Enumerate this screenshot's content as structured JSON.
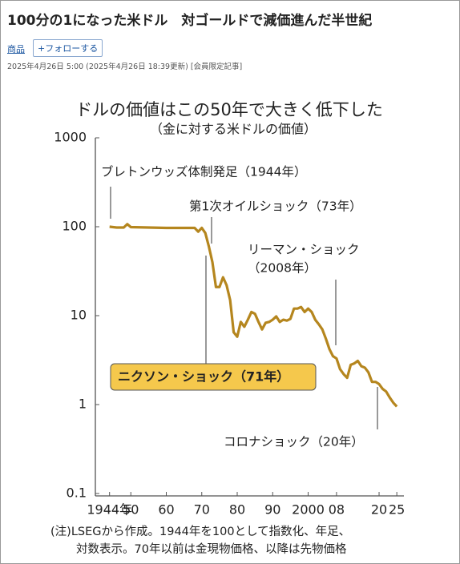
{
  "article": {
    "title": "100分の1になった米ドル　対ゴールドで減価進んだ半世紀",
    "tag": "商品",
    "follow": "+フォローする",
    "date": "2025年4月26日 5:00 (2025年4月26日 18:39更新) [会員限定記事]"
  },
  "chart_data": {
    "type": "line",
    "title": "ドルの価値はこの50年で大きく低下した",
    "subtitle": "（金に対する米ドルの価値）",
    "x": [
      1944,
      1946,
      1948,
      1949,
      1950,
      1955,
      1960,
      1965,
      1968,
      1969,
      1970,
      1971,
      1972,
      1973,
      1974,
      1975,
      1976,
      1977,
      1978,
      1979,
      1980,
      1981,
      1982,
      1983,
      1984,
      1985,
      1986,
      1987,
      1988,
      1989,
      1990,
      1991,
      1992,
      1993,
      1994,
      1995,
      1996,
      1997,
      1998,
      1999,
      2000,
      2001,
      2002,
      2003,
      2004,
      2005,
      2006,
      2007,
      2008,
      2009,
      2010,
      2011,
      2012,
      2013,
      2014,
      2015,
      2016,
      2017,
      2018,
      2019,
      2020,
      2021,
      2022,
      2023,
      2024,
      2025
    ],
    "values": [
      100,
      98,
      98,
      107,
      99,
      98,
      97,
      97,
      97,
      88,
      97,
      85,
      60,
      40,
      21,
      21,
      27,
      22,
      15,
      6.5,
      5.8,
      8.5,
      7.5,
      9,
      11,
      10.5,
      8.5,
      7,
      8.3,
      8.5,
      9,
      9.8,
      8.5,
      9,
      8.8,
      9.2,
      12,
      12,
      12.5,
      11,
      12,
      11,
      9,
      8,
      7,
      5.5,
      4.2,
      3.5,
      3.3,
      2.5,
      2.2,
      2.0,
      2.8,
      2.9,
      3.1,
      2.7,
      2.6,
      2.3,
      1.8,
      1.8,
      1.7,
      1.5,
      1.4,
      1.2,
      1.05,
      0.95
    ],
    "color": "#b5861e",
    "log_y": true,
    "xlim": [
      1940,
      2027
    ],
    "ylim": [
      0.1,
      1000
    ],
    "xticks": [
      {
        "value": 1944,
        "label": "1944年"
      },
      50,
      60,
      70,
      80,
      90,
      2000,
      {
        "value": 2008,
        "label": "08"
      },
      20,
      25
    ],
    "yticks": [
      0.1,
      1,
      10,
      100,
      1000
    ],
    "annotations": [
      "ブレトンウッズ体制発足（1944年）",
      "第1次オイルショック（73年）",
      "リーマン・ショック",
      "（2008年）",
      "ニクソン・ショック（71年）",
      "コロナショック（20年）"
    ],
    "note": [
      "(注)LSEGから作成。1944年を100として指数化、年足、",
      "対数表示。70年以前は金現物価格、以降は先物価格"
    ]
  }
}
